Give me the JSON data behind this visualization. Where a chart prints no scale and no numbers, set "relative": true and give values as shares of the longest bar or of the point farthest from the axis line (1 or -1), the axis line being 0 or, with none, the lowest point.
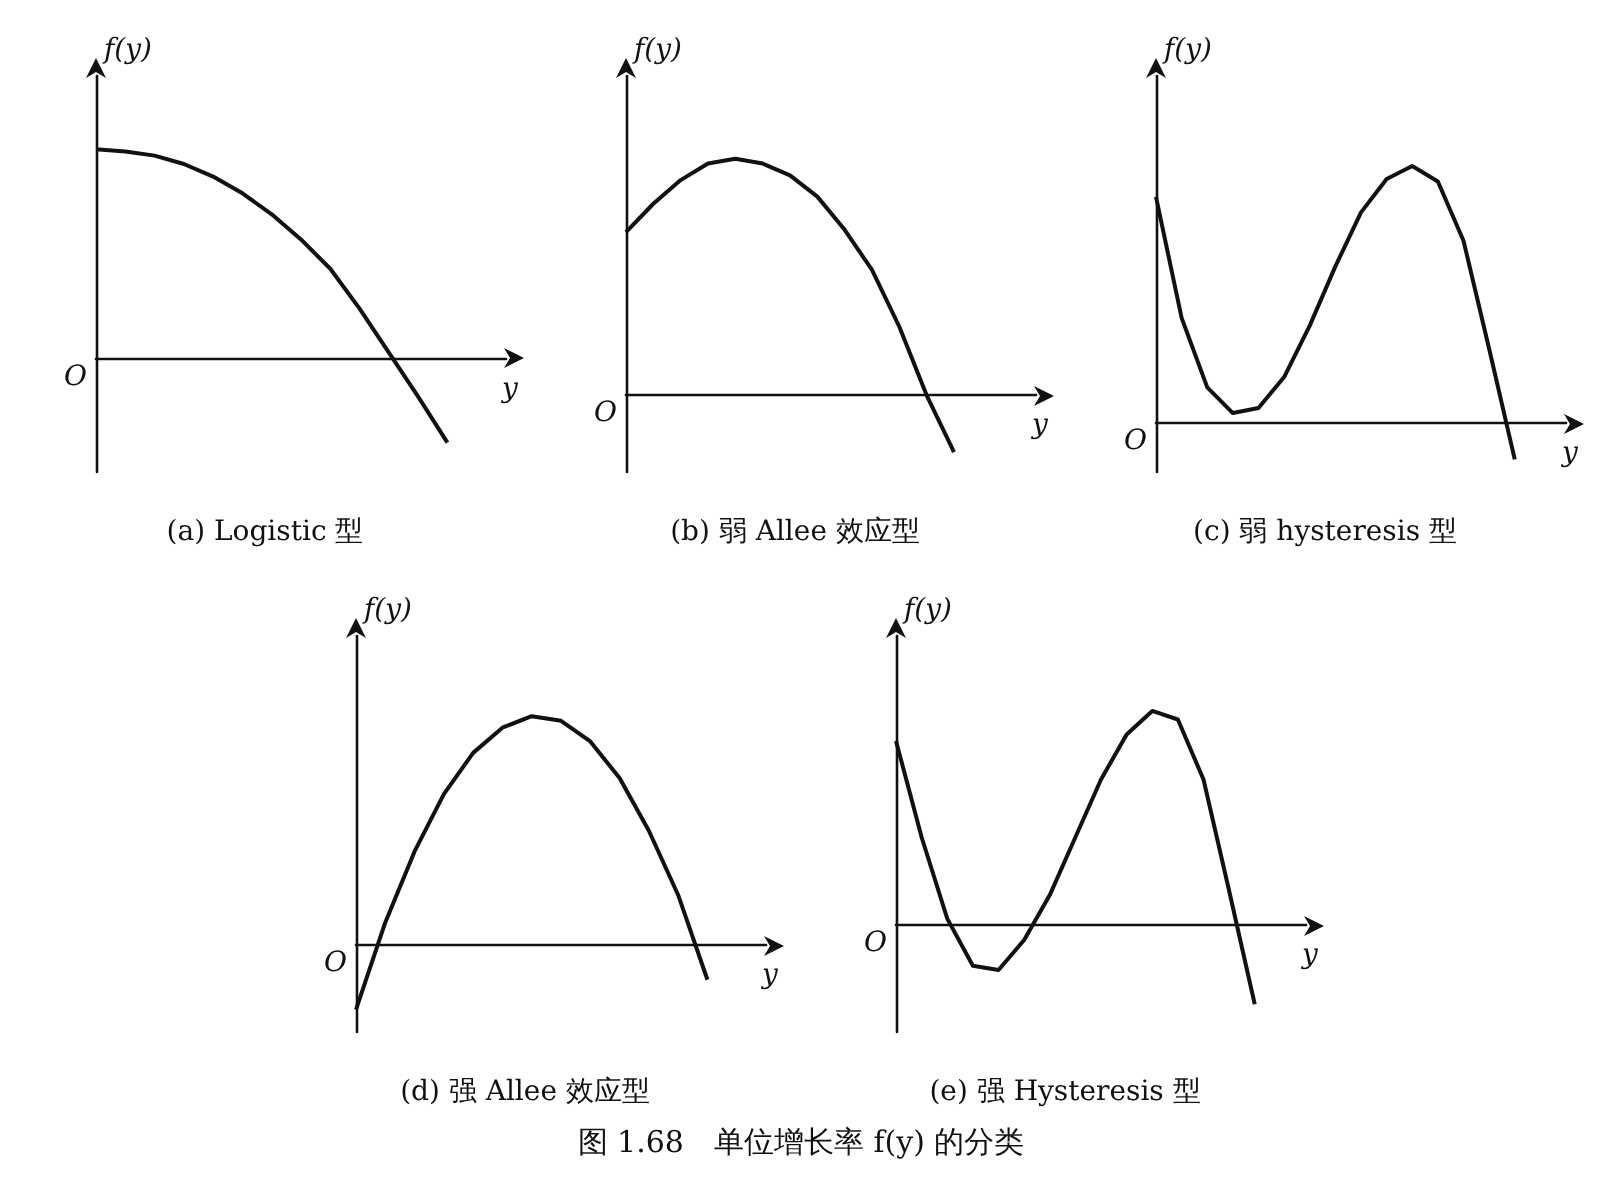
{
  "chart_data": [
    {
      "type": "line",
      "relative": true,
      "title": "(a) Logistic 型",
      "xlabel": "y",
      "ylabel": "f(y)",
      "annotations": [
        "O"
      ],
      "color": "#111111",
      "marker": "none",
      "categories": [
        null,
        null,
        null,
        null,
        null,
        null,
        null,
        null,
        null,
        null,
        null,
        null,
        null,
        null,
        null
      ],
      "values": [
        1,
        0.99,
        0.97,
        0.93,
        0.87,
        0.79,
        0.69,
        0.57,
        0.43,
        0.24,
        0.03,
        -0.18,
        -0.4,
        null,
        null
      ]
    },
    {
      "type": "line",
      "relative": true,
      "title": "(b) 弱 Allee 效应型",
      "xlabel": "y",
      "ylabel": "f(y)",
      "annotations": [
        "O"
      ],
      "color": "#111111",
      "marker": "none",
      "categories": [
        null,
        null,
        null,
        null,
        null,
        null,
        null,
        null,
        null,
        null,
        null,
        null,
        null,
        null,
        null,
        null
      ],
      "values": [
        0.69,
        0.81,
        0.91,
        0.98,
        1,
        0.98,
        0.93,
        0.84,
        0.7,
        0.53,
        0.29,
        0,
        -0.24,
        null,
        null,
        null
      ]
    },
    {
      "type": "line",
      "relative": true,
      "title": "(c) 弱 hysteresis 型",
      "xlabel": "y",
      "ylabel": "f(y)",
      "annotations": [
        "O"
      ],
      "color": "#111111",
      "marker": "none",
      "categories": [
        null,
        null,
        null,
        null,
        null,
        null,
        null,
        null,
        null,
        null,
        null,
        null,
        null,
        null,
        null,
        null,
        null
      ],
      "values": [
        0.88,
        0.41,
        0.14,
        0.04,
        0.06,
        0.18,
        0.38,
        0.61,
        0.82,
        0.95,
        1,
        0.94,
        0.71,
        0.29,
        -0.14,
        null,
        null
      ]
    },
    {
      "type": "line",
      "relative": true,
      "title": "(d) 强 Allee 效应型",
      "xlabel": "y",
      "ylabel": "f(y)",
      "annotations": [
        "O"
      ],
      "color": "#111111",
      "marker": "none",
      "categories": [
        null,
        null,
        null,
        null,
        null,
        null,
        null,
        null,
        null,
        null,
        null,
        null,
        null,
        null,
        null
      ],
      "values": [
        -0.28,
        0.1,
        0.41,
        0.66,
        0.84,
        0.95,
        1,
        0.98,
        0.89,
        0.73,
        0.5,
        0.22,
        -0.15,
        null,
        null
      ]
    },
    {
      "type": "line",
      "relative": true,
      "title": "(e) 强 Hysteresis 型",
      "xlabel": "y",
      "ylabel": "f(y)",
      "annotations": [
        "O",
        "图 1.68　单位增长率 f(y) 的分类"
      ],
      "color": "#111111",
      "marker": "none",
      "categories": [
        null,
        null,
        null,
        null,
        null,
        null,
        null,
        null,
        null,
        null,
        null,
        null,
        null,
        null,
        null,
        null,
        null
      ],
      "values": [
        0.86,
        0.41,
        0.03,
        -0.19,
        -0.21,
        -0.07,
        0.14,
        0.41,
        0.68,
        0.89,
        1,
        0.96,
        0.68,
        0.16,
        -0.37,
        null,
        null
      ]
    }
  ]
}
